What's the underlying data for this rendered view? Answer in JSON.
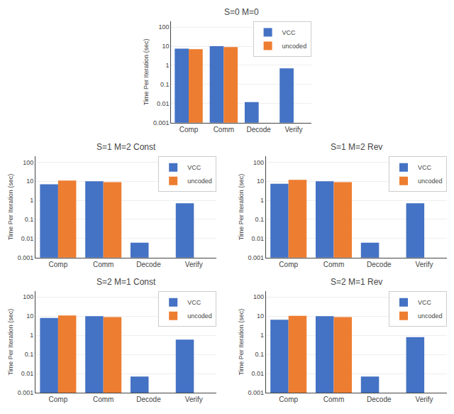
{
  "chart_data": [
    {
      "type": "bar",
      "title": "S=0 M=0",
      "categories": [
        "Comp",
        "Comm",
        "Decode",
        "Verify"
      ],
      "series": [
        {
          "name": "VCC",
          "color": "#4472C4",
          "values": [
            7.5,
            10.0,
            0.012,
            0.7
          ]
        },
        {
          "name": "uncoded",
          "color": "#ED7D31",
          "values": [
            7.0,
            9.0,
            null,
            null
          ]
        }
      ],
      "ylabel": "Time Per Iteration (sec)",
      "log": "y",
      "ylim": [
        0.001,
        200
      ],
      "yticks": [
        0.001,
        0.01,
        0.1,
        1,
        10,
        100
      ],
      "grid": true,
      "legend": "upper right"
    },
    {
      "type": "bar",
      "title": "S=1 M=2 Const",
      "categories": [
        "Comp",
        "Comm",
        "Decode",
        "Verify"
      ],
      "series": [
        {
          "name": "VCC",
          "color": "#4472C4",
          "values": [
            7.0,
            10.0,
            0.006,
            0.7
          ]
        },
        {
          "name": "uncoded",
          "color": "#ED7D31",
          "values": [
            11.0,
            9.0,
            null,
            null
          ]
        }
      ],
      "ylabel": "Time Per Iteration (sec)",
      "log": "y",
      "ylim": [
        0.001,
        200
      ],
      "yticks": [
        0.001,
        0.01,
        0.1,
        1,
        10,
        100
      ],
      "grid": true,
      "legend": "upper right"
    },
    {
      "type": "bar",
      "title": "S=1 M=2 Rev",
      "categories": [
        "Comp",
        "Comm",
        "Decode",
        "Verify"
      ],
      "series": [
        {
          "name": "VCC",
          "color": "#4472C4",
          "values": [
            7.5,
            10.0,
            0.006,
            0.7
          ]
        },
        {
          "name": "uncoded",
          "color": "#ED7D31",
          "values": [
            12.0,
            9.0,
            null,
            null
          ]
        }
      ],
      "ylabel": "Time Per Iteration (sec)",
      "log": "y",
      "ylim": [
        0.001,
        200
      ],
      "yticks": [
        0.001,
        0.01,
        0.1,
        1,
        10,
        100
      ],
      "grid": true,
      "legend": "upper right"
    },
    {
      "type": "bar",
      "title": "S=2 M=1 Const",
      "categories": [
        "Comp",
        "Comm",
        "Decode",
        "Verify"
      ],
      "series": [
        {
          "name": "VCC",
          "color": "#4472C4",
          "values": [
            8.0,
            10.0,
            0.007,
            0.6
          ]
        },
        {
          "name": "uncoded",
          "color": "#ED7D31",
          "values": [
            11.0,
            9.0,
            null,
            null
          ]
        }
      ],
      "ylabel": "Time Per Iteration (sec)",
      "log": "y",
      "ylim": [
        0.001,
        200
      ],
      "yticks": [
        0.001,
        0.01,
        0.1,
        1,
        10,
        100
      ],
      "grid": true,
      "legend": "upper right"
    },
    {
      "type": "bar",
      "title": "S=2 M=1 Rev",
      "categories": [
        "Comp",
        "Comm",
        "Decode",
        "Verify"
      ],
      "series": [
        {
          "name": "VCC",
          "color": "#4472C4",
          "values": [
            6.5,
            10.0,
            0.007,
            0.8
          ]
        },
        {
          "name": "uncoded",
          "color": "#ED7D31",
          "values": [
            10.5,
            9.0,
            null,
            null
          ]
        }
      ],
      "ylabel": "Time Per Iteration (sec)",
      "log": "y",
      "ylim": [
        0.001,
        200
      ],
      "yticks": [
        0.001,
        0.01,
        0.1,
        1,
        10,
        100
      ],
      "grid": true,
      "legend": "upper right"
    }
  ]
}
